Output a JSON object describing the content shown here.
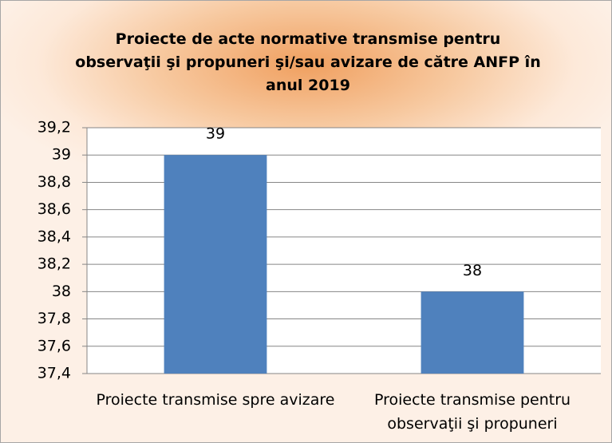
{
  "chart_data": {
    "type": "bar",
    "title": "Proiecte de acte normative transmise pentru observaţii şi propuneri şi/sau avizare de către ANFP în anul 2019",
    "categories": [
      "Proiecte transmise spre avizare",
      "Proiecte transmise pentru observaţii şi propuneri"
    ],
    "values": [
      39,
      38
    ],
    "color": "#4f81bd",
    "ylim": [
      37.4,
      39.2
    ],
    "yticks": [
      {
        "value": 37.4,
        "label": "37,4"
      },
      {
        "value": 37.6,
        "label": "37,6"
      },
      {
        "value": 37.8,
        "label": "37,8"
      },
      38,
      {
        "value": 38.2,
        "label": "38,2"
      },
      {
        "value": 38.4,
        "label": "38,4"
      },
      {
        "value": 38.6,
        "label": "38,6"
      },
      {
        "value": 38.8,
        "label": "38,8"
      },
      39,
      {
        "value": 39.2,
        "label": "39,2"
      }
    ],
    "grid": true
  }
}
